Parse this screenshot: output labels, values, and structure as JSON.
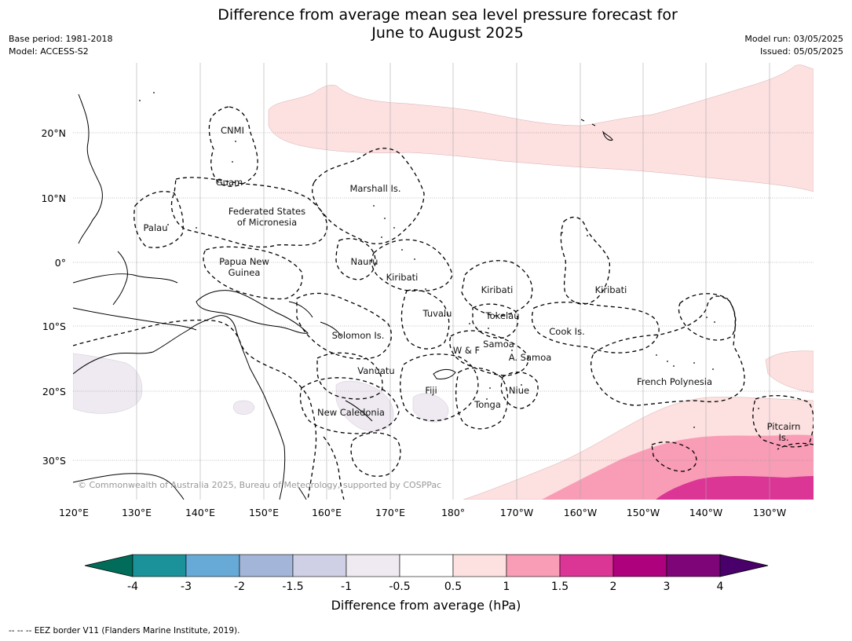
{
  "title": {
    "line1": "Difference from average mean sea level pressure forecast for",
    "line2": "June to August 2025"
  },
  "meta": {
    "base_period": "Base period: 1981-2018",
    "model": "Model: ACCESS-S2",
    "model_run": "Model run: 03/05/2025",
    "issued": "Issued: 05/05/2025"
  },
  "map": {
    "lon_labels": [
      "120°E",
      "130°E",
      "140°E",
      "150°E",
      "160°E",
      "170°E",
      "180°",
      "170°W",
      "160°W",
      "150°W",
      "140°W",
      "130°W"
    ],
    "lat_labels": [
      "20°N",
      "10°N",
      "0°",
      "10°S",
      "20°S",
      "30°S"
    ],
    "copyright": "© Commonwealth of Australia 2025, Bureau of Meteorology, supported by COSPPac",
    "regions": {
      "cnmi": "CNMI",
      "guam": "Guam",
      "marshall": "Marshall Is.",
      "fsm_1": "Federated States",
      "fsm_2": "of Micronesia",
      "palau": "Palau",
      "png_1": "Papua New",
      "png_2": "Guinea",
      "nauru": "Nauru",
      "kiribati_w": "Kiribati",
      "kiribati_c": "Kiribati",
      "kiribati_e": "Kiribati",
      "tuvalu": "Tuvalu",
      "tokelau": "Tokelau",
      "cook": "Cook Is.",
      "solomon": "Solomon Is.",
      "samoa": "Samoa",
      "wf": "W & F",
      "asamoa": "A. Samoa",
      "vanuatu": "Vanuatu",
      "fiji": "Fiji",
      "niue": "Niue",
      "tonga": "Tonga",
      "frenchpoly": "French Polynesia",
      "newcal": "New Caledonia",
      "pitcairn_1": "Pitcairn",
      "pitcairn_2": "Is."
    }
  },
  "colorbar": {
    "ticks": [
      "-4",
      "-3",
      "-2",
      "-1.5",
      "-1",
      "-0.5",
      "0.5",
      "1",
      "1.5",
      "2",
      "3",
      "4"
    ],
    "colors": [
      "#1b9299",
      "#67aad7",
      "#a3b6d9",
      "#cfcfe6",
      "#efeaf1",
      "#ffffff",
      "#fde0e0",
      "#f99cb6",
      "#db3596",
      "#ad017e",
      "#7d0577"
    ],
    "low_extend_color": "#016c59",
    "high_extend_color": "#49006a",
    "label": "Difference from average (hPa)"
  },
  "footnote": "--  --  -- EEZ border V11 (Flanders Marine Institute, 2019)."
}
